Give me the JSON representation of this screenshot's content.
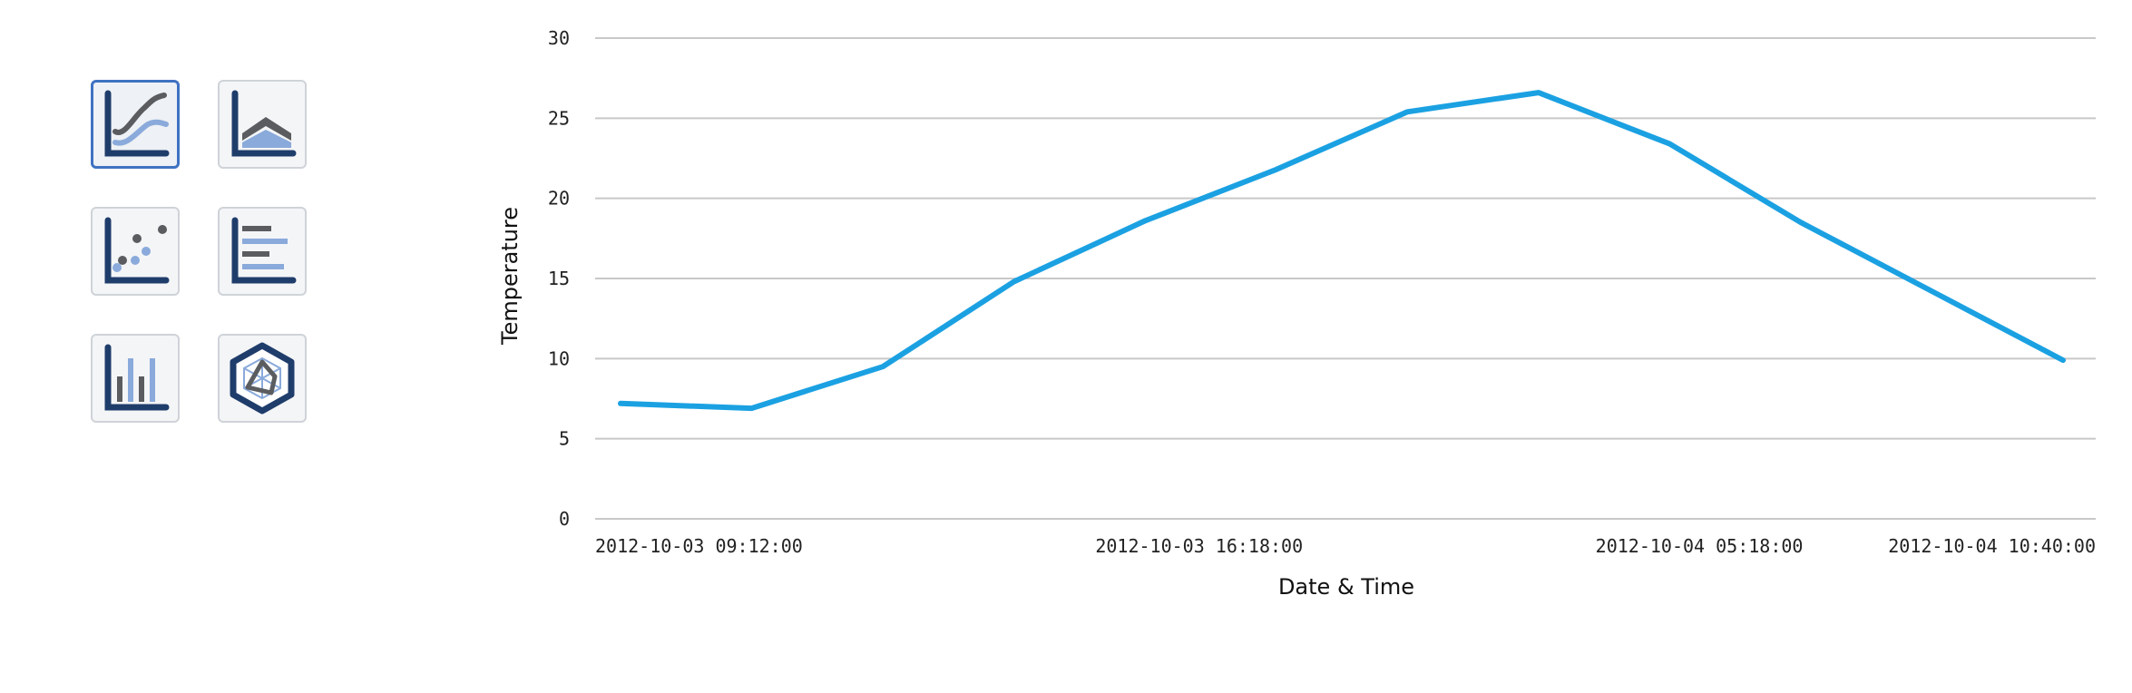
{
  "chart_type_selector": {
    "options": [
      {
        "name": "line",
        "icon": "line-chart-icon",
        "selected": true
      },
      {
        "name": "area",
        "icon": "area-chart-icon",
        "selected": false
      },
      {
        "name": "scatter",
        "icon": "scatter-chart-icon",
        "selected": false
      },
      {
        "name": "horizontal-bar",
        "icon": "horizontal-bar-chart-icon",
        "selected": false
      },
      {
        "name": "column",
        "icon": "column-chart-icon",
        "selected": false
      },
      {
        "name": "radar",
        "icon": "radar-chart-icon",
        "selected": false
      }
    ]
  },
  "colors": {
    "line": "#1ba1e2",
    "grid": "#c8c8c8",
    "icon_dark": "#1f3d6b",
    "icon_gray": "#5a5c60",
    "icon_light": "#8aaadb",
    "selected_border": "#3f72c2"
  },
  "chart_data": {
    "type": "line",
    "title": "",
    "xlabel": "Date & Time",
    "ylabel": "Temperature",
    "ylim": [
      0,
      30
    ],
    "yticks": [
      "0",
      "5",
      "10",
      "15",
      "20",
      "25",
      "30"
    ],
    "xticks": [
      "2012-10-03 09:12:00",
      "2012-10-03 16:18:00",
      "2012-10-04 05:18:00",
      "2012-10-04 10:40:00"
    ],
    "grid": true,
    "series": [
      {
        "values": [
          7.2,
          6.9,
          9.5,
          14.8,
          18.6,
          21.8,
          25.4,
          26.6,
          23.4,
          18.5,
          14.2,
          9.9
        ]
      }
    ]
  }
}
